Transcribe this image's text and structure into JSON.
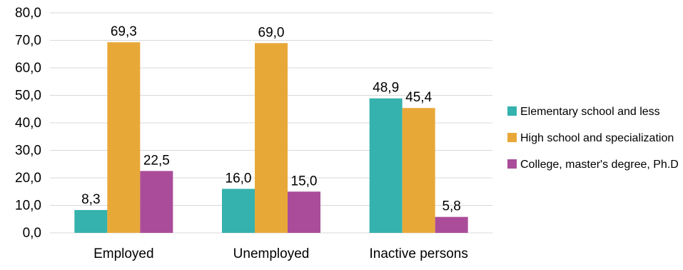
{
  "chart_data": {
    "type": "bar",
    "categories": [
      "Employed",
      "Unemployed",
      "Inactive persons"
    ],
    "series": [
      {
        "name": "Elementary school and less",
        "values": [
          8.3,
          16.0,
          48.9
        ],
        "labels": [
          "8,3",
          "16,0",
          "48,9"
        ],
        "color": "#35b2ad"
      },
      {
        "name": "High school and specialization",
        "values": [
          69.3,
          69.0,
          45.4
        ],
        "labels": [
          "69,3",
          "69,0",
          "45,4"
        ],
        "color": "#e8a838"
      },
      {
        "name": "College, master's degree, Ph.D",
        "values": [
          22.5,
          15.0,
          5.8
        ],
        "labels": [
          "22,5",
          "15,0",
          "5,8"
        ],
        "color": "#ab4c9a"
      }
    ],
    "ylim": [
      0,
      80
    ],
    "yticks": [
      0,
      10,
      20,
      30,
      40,
      50,
      60,
      70,
      80
    ],
    "ytick_labels": [
      "0,0",
      "10,0",
      "20,0",
      "30,0",
      "40,0",
      "50,0",
      "60,0",
      "70,0",
      "80,0"
    ],
    "grid": true,
    "legend_position": "right",
    "title": "",
    "xlabel": "",
    "ylabel": ""
  }
}
